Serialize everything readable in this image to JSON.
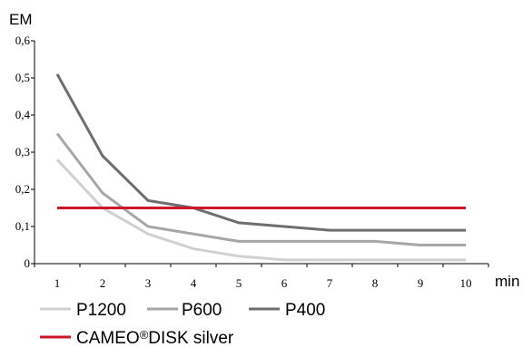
{
  "chart_data": {
    "type": "line",
    "ylabel": "EM",
    "xlabel": "min",
    "x": [
      1,
      2,
      3,
      4,
      5,
      6,
      7,
      8,
      9,
      10
    ],
    "xticks": [
      "1",
      "2",
      "3",
      "4",
      "5",
      "6",
      "7",
      "8",
      "9",
      "10"
    ],
    "ylim": [
      0,
      0.6
    ],
    "yticks": [
      "0",
      "0,1",
      "0,2",
      "0,3",
      "0,4",
      "0,5",
      "0,6"
    ],
    "grid": false,
    "legend_position": "bottom",
    "series": [
      {
        "name": "P1200",
        "color": "#d0d0d0",
        "values": [
          0.28,
          0.15,
          0.08,
          0.04,
          0.02,
          0.01,
          0.01,
          0.01,
          0.01,
          0.01
        ]
      },
      {
        "name": "P600",
        "color": "#a6a6a6",
        "values": [
          0.35,
          0.19,
          0.1,
          0.08,
          0.06,
          0.06,
          0.06,
          0.06,
          0.05,
          0.05
        ]
      },
      {
        "name": "P400",
        "color": "#6e6e6e",
        "values": [
          0.51,
          0.29,
          0.17,
          0.15,
          0.11,
          0.1,
          0.09,
          0.09,
          0.09,
          0.09
        ]
      },
      {
        "name": "CAMEO®DISK silver",
        "name_parts": [
          "CAMEO",
          "®",
          "DISK silver"
        ],
        "color": "#d0142c",
        "values": [
          0.15,
          0.15,
          0.15,
          0.15,
          0.15,
          0.15,
          0.15,
          0.15,
          0.15,
          0.15
        ]
      }
    ]
  }
}
